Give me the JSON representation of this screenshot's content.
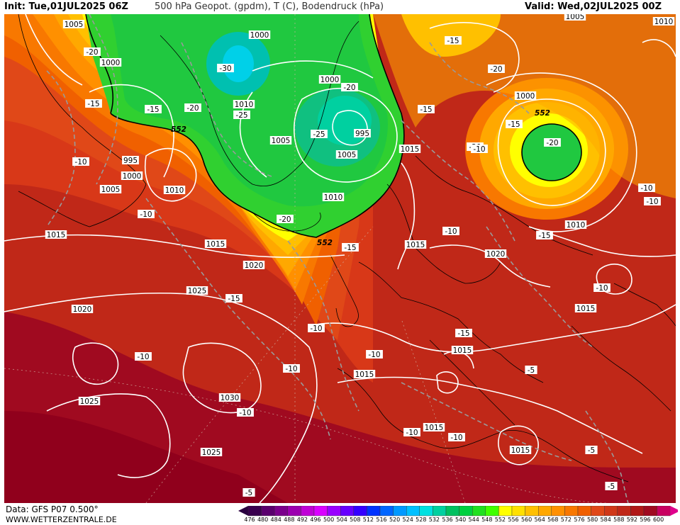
{
  "header": {
    "init": "Init: Tue,01JUL2025 06Z",
    "title": "500 hPa Geopot. (gpdm), T (C), Bodendruck (hPa)",
    "valid": "Valid: Wed,02JUL2025 00Z"
  },
  "footer": {
    "source": "Data: GFS P07 0.500°",
    "site": "WWW.WETTERZENTRALE.DE"
  },
  "legend": {
    "values": [
      "476",
      "480",
      "484",
      "488",
      "492",
      "496",
      "500",
      "504",
      "508",
      "512",
      "516",
      "520",
      "524",
      "528",
      "532",
      "536",
      "540",
      "544",
      "548",
      "552",
      "556",
      "560",
      "564",
      "568",
      "572",
      "576",
      "580",
      "584",
      "588",
      "592",
      "596",
      "600"
    ],
    "colors": [
      "#3a004f",
      "#5a006e",
      "#7a008c",
      "#9c00b0",
      "#bf00d6",
      "#d900ff",
      "#9900ff",
      "#6600ff",
      "#3300ff",
      "#0033ff",
      "#0066ff",
      "#0099ff",
      "#00c0ff",
      "#00e0e0",
      "#00d0a0",
      "#00c060",
      "#00d040",
      "#20e020",
      "#40ff00",
      "#ffff00",
      "#ffe000",
      "#ffc000",
      "#ffa800",
      "#ff9000",
      "#f87800",
      "#f06000",
      "#e04818",
      "#d03818",
      "#c02818",
      "#b01818",
      "#a00a20",
      "#c80060"
    ]
  },
  "pressure_labels": [
    "1005",
    "1000",
    "1000",
    "995",
    "1000",
    "1005",
    "1010",
    "1015",
    "1015",
    "1020",
    "1025",
    "1020",
    "1025",
    "1030",
    "1025",
    "1005",
    "1000",
    "995",
    "1005",
    "1010",
    "1015",
    "1015",
    "1010",
    "1015",
    "1020",
    "1015",
    "1015",
    "1015",
    "1015",
    "1010",
    "1000",
    "1010",
    "1005",
    "1010",
    "1010"
  ],
  "temp_labels": [
    "-20",
    "-15",
    "-15",
    "-20",
    "-25",
    "-30",
    "-20",
    "-25",
    "-15",
    "-10",
    "-15",
    "-10",
    "-10",
    "-20",
    "-15",
    "-20",
    "-15",
    "-10",
    "-15",
    "-10",
    "-10",
    "-10",
    "-15",
    "-10",
    "-10",
    "-5",
    "-10",
    "-10",
    "-10",
    "-5",
    "-5",
    "-5",
    "-15",
    "-20",
    "-20",
    "-10",
    "-10"
  ],
  "contour_552": [
    "552",
    "552",
    "552"
  ]
}
